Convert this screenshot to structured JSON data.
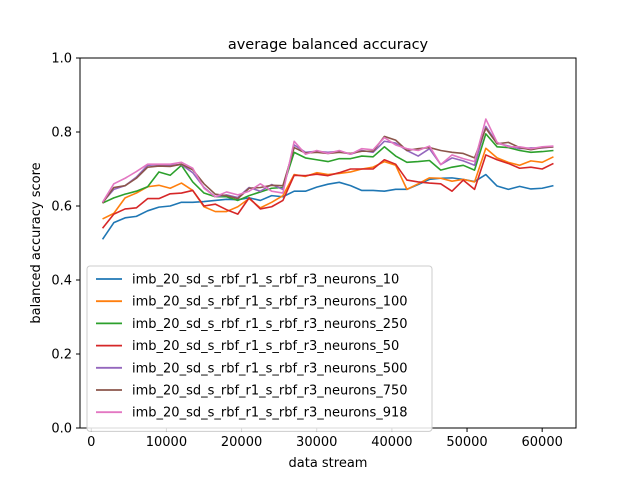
{
  "chart_data": {
    "type": "line",
    "title": "average balanced accuracy",
    "xlabel": "data stream",
    "ylabel": "balanced accuracy score",
    "xlim": [
      -1500,
      64500
    ],
    "ylim": [
      0.0,
      1.0
    ],
    "xticks": [
      0,
      10000,
      20000,
      30000,
      40000,
      50000,
      60000
    ],
    "yticks": [
      0.0,
      0.2,
      0.4,
      0.6,
      0.8,
      1.0
    ],
    "grid": false,
    "legend_position": "lower-left",
    "x": [
      1500,
      3000,
      4500,
      6000,
      7500,
      9000,
      10500,
      12000,
      13500,
      15000,
      16500,
      18000,
      19500,
      21000,
      22500,
      24000,
      25500,
      27000,
      28500,
      30000,
      31500,
      33000,
      34500,
      36000,
      37500,
      39000,
      40500,
      42000,
      43500,
      45000,
      46500,
      48000,
      49500,
      51000,
      52500,
      54000,
      55500,
      57000,
      58500,
      60000,
      61500
    ],
    "series": [
      {
        "name": "imb_20_sd_s_rbf_r1_s_rbf_r3_neurons_10",
        "color": "#1f77b4",
        "values": [
          0.51,
          0.555,
          0.568,
          0.572,
          0.587,
          0.597,
          0.6,
          0.61,
          0.61,
          0.612,
          0.615,
          0.618,
          0.617,
          0.622,
          0.615,
          0.628,
          0.625,
          0.64,
          0.64,
          0.651,
          0.659,
          0.664,
          0.655,
          0.642,
          0.642,
          0.64,
          0.645,
          0.645,
          0.658,
          0.672,
          0.675,
          0.676,
          0.672,
          0.666,
          0.685,
          0.654,
          0.645,
          0.653,
          0.646,
          0.648,
          0.655
        ]
      },
      {
        "name": "imb_20_sd_s_rbf_r1_s_rbf_r3_neurons_100",
        "color": "#ff7f0e",
        "values": [
          0.565,
          0.58,
          0.622,
          0.635,
          0.652,
          0.656,
          0.648,
          0.662,
          0.642,
          0.598,
          0.585,
          0.585,
          0.598,
          0.62,
          0.595,
          0.61,
          0.628,
          0.685,
          0.68,
          0.69,
          0.685,
          0.688,
          0.692,
          0.7,
          0.705,
          0.72,
          0.71,
          0.645,
          0.66,
          0.676,
          0.675,
          0.667,
          0.672,
          0.665,
          0.756,
          0.73,
          0.718,
          0.71,
          0.722,
          0.718,
          0.733
        ]
      },
      {
        "name": "imb_20_sd_s_rbf_r1_s_rbf_r3_neurons_250",
        "color": "#2ca02c",
        "values": [
          0.608,
          0.622,
          0.632,
          0.64,
          0.652,
          0.692,
          0.683,
          0.71,
          0.665,
          0.635,
          0.625,
          0.625,
          0.615,
          0.628,
          0.638,
          0.648,
          0.65,
          0.745,
          0.73,
          0.725,
          0.72,
          0.728,
          0.728,
          0.735,
          0.733,
          0.76,
          0.735,
          0.718,
          0.72,
          0.723,
          0.697,
          0.705,
          0.71,
          0.697,
          0.795,
          0.76,
          0.758,
          0.75,
          0.745,
          0.747,
          0.75
        ]
      },
      {
        "name": "imb_20_sd_s_rbf_r1_s_rbf_r3_neurons_50",
        "color": "#d62728",
        "values": [
          0.54,
          0.578,
          0.592,
          0.595,
          0.62,
          0.62,
          0.633,
          0.635,
          0.642,
          0.6,
          0.605,
          0.59,
          0.578,
          0.622,
          0.592,
          0.598,
          0.615,
          0.683,
          0.682,
          0.686,
          0.682,
          0.69,
          0.7,
          0.7,
          0.7,
          0.725,
          0.713,
          0.67,
          0.665,
          0.662,
          0.66,
          0.64,
          0.67,
          0.645,
          0.738,
          0.725,
          0.715,
          0.702,
          0.705,
          0.7,
          0.715
        ]
      },
      {
        "name": "imb_20_sd_s_rbf_r1_s_rbf_r3_neurons_500",
        "color": "#9467bd",
        "values": [
          0.61,
          0.645,
          0.655,
          0.678,
          0.71,
          0.712,
          0.71,
          0.712,
          0.69,
          0.65,
          0.625,
          0.63,
          0.623,
          0.65,
          0.64,
          0.658,
          0.645,
          0.765,
          0.745,
          0.748,
          0.745,
          0.748,
          0.74,
          0.75,
          0.745,
          0.775,
          0.77,
          0.75,
          0.735,
          0.755,
          0.712,
          0.73,
          0.722,
          0.71,
          0.815,
          0.77,
          0.762,
          0.755,
          0.757,
          0.757,
          0.76
        ]
      },
      {
        "name": "imb_20_sd_s_rbf_r1_s_rbf_r3_neurons_750",
        "color": "#8c564b",
        "values": [
          0.608,
          0.65,
          0.655,
          0.675,
          0.705,
          0.708,
          0.707,
          0.713,
          0.698,
          0.66,
          0.632,
          0.628,
          0.62,
          0.648,
          0.65,
          0.656,
          0.655,
          0.758,
          0.743,
          0.745,
          0.742,
          0.745,
          0.742,
          0.748,
          0.748,
          0.788,
          0.778,
          0.75,
          0.755,
          0.758,
          0.75,
          0.745,
          0.742,
          0.73,
          0.81,
          0.768,
          0.772,
          0.758,
          0.752,
          0.758,
          0.76
        ]
      },
      {
        "name": "imb_20_sd_s_rbf_r1_s_rbf_r3_neurons_918",
        "color": "#e377c2",
        "values": [
          0.61,
          0.66,
          0.675,
          0.693,
          0.713,
          0.713,
          0.713,
          0.718,
          0.702,
          0.648,
          0.625,
          0.638,
          0.63,
          0.64,
          0.66,
          0.64,
          0.635,
          0.775,
          0.74,
          0.75,
          0.742,
          0.75,
          0.74,
          0.755,
          0.752,
          0.785,
          0.765,
          0.755,
          0.75,
          0.762,
          0.712,
          0.738,
          0.728,
          0.72,
          0.835,
          0.772,
          0.76,
          0.76,
          0.755,
          0.76,
          0.762
        ]
      }
    ]
  }
}
